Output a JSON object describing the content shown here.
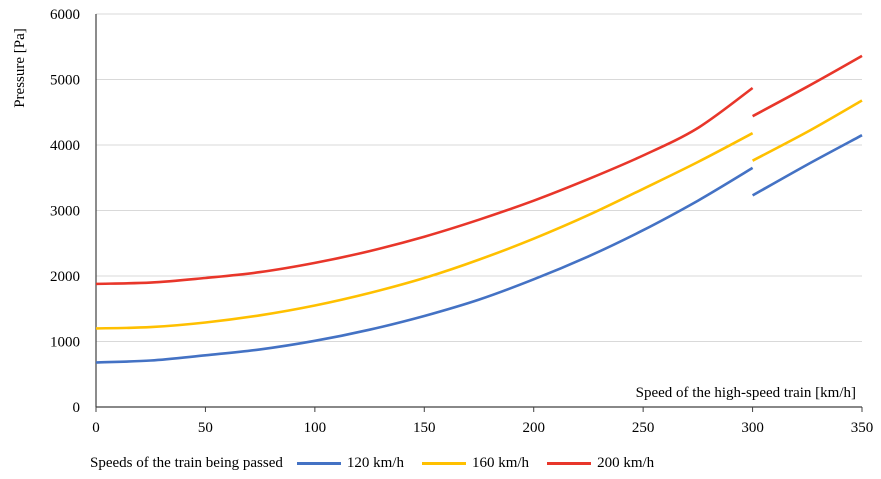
{
  "chart_data": {
    "type": "line",
    "title": "",
    "xlabel": "Speed of the high-speed train [km/h]",
    "ylabel": "Pressure [Pa]",
    "xlim": [
      0,
      350
    ],
    "ylim": [
      0,
      6000
    ],
    "x_ticks": [
      0,
      50,
      100,
      150,
      200,
      250,
      300,
      350
    ],
    "y_ticks": [
      0,
      1000,
      2000,
      3000,
      4000,
      5000,
      6000
    ],
    "grid": "horizontal",
    "legend_title": "Speeds of the train being passed",
    "legend_position": "bottom",
    "series": [
      {
        "name": "120 km/h",
        "color": "#4472c4",
        "segments": [
          {
            "x": [
              0,
              25,
              50,
              75,
              100,
              125,
              150,
              175,
              200,
              225,
              250,
              275,
              300
            ],
            "y": [
              680,
              710,
              790,
              880,
              1010,
              1180,
              1390,
              1640,
              1950,
              2300,
              2700,
              3150,
              3650
            ]
          },
          {
            "x": [
              300,
              325,
              350
            ],
            "y": [
              3230,
              3700,
              4150
            ]
          }
        ]
      },
      {
        "name": "160 km/h",
        "color": "#ffc000",
        "segments": [
          {
            "x": [
              0,
              25,
              50,
              75,
              100,
              125,
              150,
              175,
              200,
              225,
              250,
              275,
              300
            ],
            "y": [
              1200,
              1220,
              1290,
              1400,
              1550,
              1740,
              1970,
              2250,
              2570,
              2930,
              3330,
              3740,
              4180
            ]
          },
          {
            "x": [
              300,
              325,
              350
            ],
            "y": [
              3760,
              4200,
              4680
            ]
          }
        ]
      },
      {
        "name": "200 km/h",
        "color": "#e8362a",
        "segments": [
          {
            "x": [
              0,
              25,
              50,
              75,
              100,
              125,
              150,
              175,
              200,
              225,
              250,
              275,
              300
            ],
            "y": [
              1880,
              1900,
              1970,
              2060,
              2200,
              2380,
              2600,
              2860,
              3150,
              3480,
              3840,
              4260,
              4870
            ]
          },
          {
            "x": [
              300,
              325,
              350
            ],
            "y": [
              4440,
              4890,
              5360
            ]
          }
        ]
      }
    ]
  }
}
